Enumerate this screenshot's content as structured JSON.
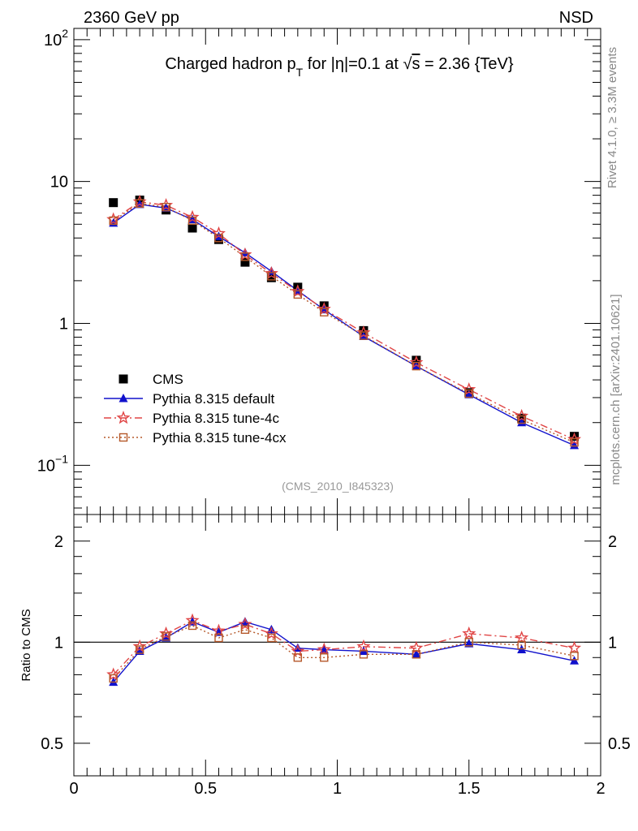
{
  "header": {
    "energy_label": "2360 GeV pp",
    "process_label": "NSD"
  },
  "side_labels": {
    "rivet": "Rivet 4.1.0, ≥ 3.3M events",
    "mcplots": "mcplots.cern.ch [arXiv:2401.10621]"
  },
  "chart_data": [
    {
      "type": "scatter",
      "panel": "main",
      "title": "Charged hadron p_T for |η|=0.1 at √s = 2.36 {TeV}",
      "title_parts": {
        "prefix": "Charged hadron p",
        "sub": "T",
        "mid": " for |η|=0.1 at ",
        "sqrt": "√",
        "s": "s",
        "suffix": " = 2.36 {TeV}"
      },
      "analysis_id": "(CMS_2010_I845323)",
      "xlabel": "",
      "ylabel": "",
      "yscale": "log",
      "xlim": [
        0,
        2
      ],
      "ylim": [
        0.045,
        120
      ],
      "y_ticks": [
        {
          "value": 0.1,
          "base": "10",
          "exp": "−1"
        },
        {
          "value": 1,
          "base": "1",
          "exp": ""
        },
        {
          "value": 10,
          "base": "10",
          "exp": ""
        },
        {
          "value": 100,
          "base": "10",
          "exp": "2"
        }
      ],
      "x": [
        0.15,
        0.25,
        0.35,
        0.45,
        0.55,
        0.65,
        0.75,
        0.85,
        0.95,
        1.1,
        1.3,
        1.5,
        1.7,
        1.9
      ],
      "legend": [
        {
          "name": "CMS",
          "color": "#000000",
          "marker": "square-filled",
          "line": "none"
        },
        {
          "name": "Pythia 8.315 default",
          "color": "#1111cc",
          "marker": "triangle-filled",
          "line": "solid"
        },
        {
          "name": "Pythia 8.315 tune-4c",
          "color": "#e04545",
          "marker": "star-open",
          "line": "dashdot"
        },
        {
          "name": "Pythia 8.315 tune-4cx",
          "color": "#b5582a",
          "marker": "square-open",
          "line": "dotted"
        }
      ],
      "series": [
        {
          "name": "CMS",
          "values": [
            7.1,
            7.4,
            6.3,
            4.7,
            3.9,
            2.7,
            2.1,
            1.8,
            1.33,
            0.89,
            0.55,
            0.325,
            0.215,
            0.16
          ]
        },
        {
          "name": "Pythia 8.315 default",
          "values": [
            5.1,
            6.9,
            6.5,
            5.4,
            4.1,
            3.15,
            2.33,
            1.7,
            1.25,
            0.81,
            0.5,
            0.315,
            0.2,
            0.138
          ]
        },
        {
          "name": "Pythia 8.315 tune-4c",
          "values": [
            5.4,
            7.2,
            6.8,
            5.6,
            4.3,
            3.05,
            2.25,
            1.68,
            1.26,
            0.86,
            0.53,
            0.342,
            0.222,
            0.152
          ]
        },
        {
          "name": "Pythia 8.315 tune-4cx",
          "values": [
            5.3,
            7.0,
            6.6,
            5.3,
            4.0,
            2.95,
            2.15,
            1.6,
            1.2,
            0.82,
            0.5,
            0.32,
            0.21,
            0.145
          ]
        }
      ]
    },
    {
      "type": "line",
      "panel": "ratio",
      "ylabel": "Ratio to CMS",
      "yscale": "log",
      "xlim": [
        0,
        2
      ],
      "ylim": [
        0.4,
        2.4
      ],
      "y_ticks": [
        {
          "value": 0.5,
          "label": "0.5"
        },
        {
          "value": 1,
          "label": "1"
        },
        {
          "value": 2,
          "label": "2"
        }
      ],
      "x_ticks": [
        {
          "value": 0,
          "label": "0"
        },
        {
          "value": 0.5,
          "label": "0.5"
        },
        {
          "value": 1,
          "label": "1"
        },
        {
          "value": 1.5,
          "label": "1.5"
        },
        {
          "value": 2,
          "label": "2"
        }
      ],
      "reference_line": 1,
      "x": [
        0.15,
        0.25,
        0.35,
        0.45,
        0.55,
        0.65,
        0.75,
        0.85,
        0.95,
        1.1,
        1.3,
        1.5,
        1.7,
        1.9
      ],
      "series": [
        {
          "name": "Pythia 8.315 default",
          "values": [
            0.76,
            0.94,
            1.03,
            1.15,
            1.07,
            1.15,
            1.09,
            0.96,
            0.95,
            0.94,
            0.92,
            0.99,
            0.95,
            0.88
          ]
        },
        {
          "name": "Pythia 8.315 tune-4c",
          "values": [
            0.8,
            0.97,
            1.06,
            1.16,
            1.08,
            1.13,
            1.06,
            0.94,
            0.95,
            0.97,
            0.96,
            1.06,
            1.03,
            0.96
          ]
        },
        {
          "name": "Pythia 8.315 tune-4cx",
          "values": [
            0.78,
            0.95,
            1.04,
            1.12,
            1.03,
            1.09,
            1.03,
            0.9,
            0.9,
            0.92,
            0.92,
            1.0,
            0.98,
            0.91
          ]
        }
      ]
    }
  ]
}
